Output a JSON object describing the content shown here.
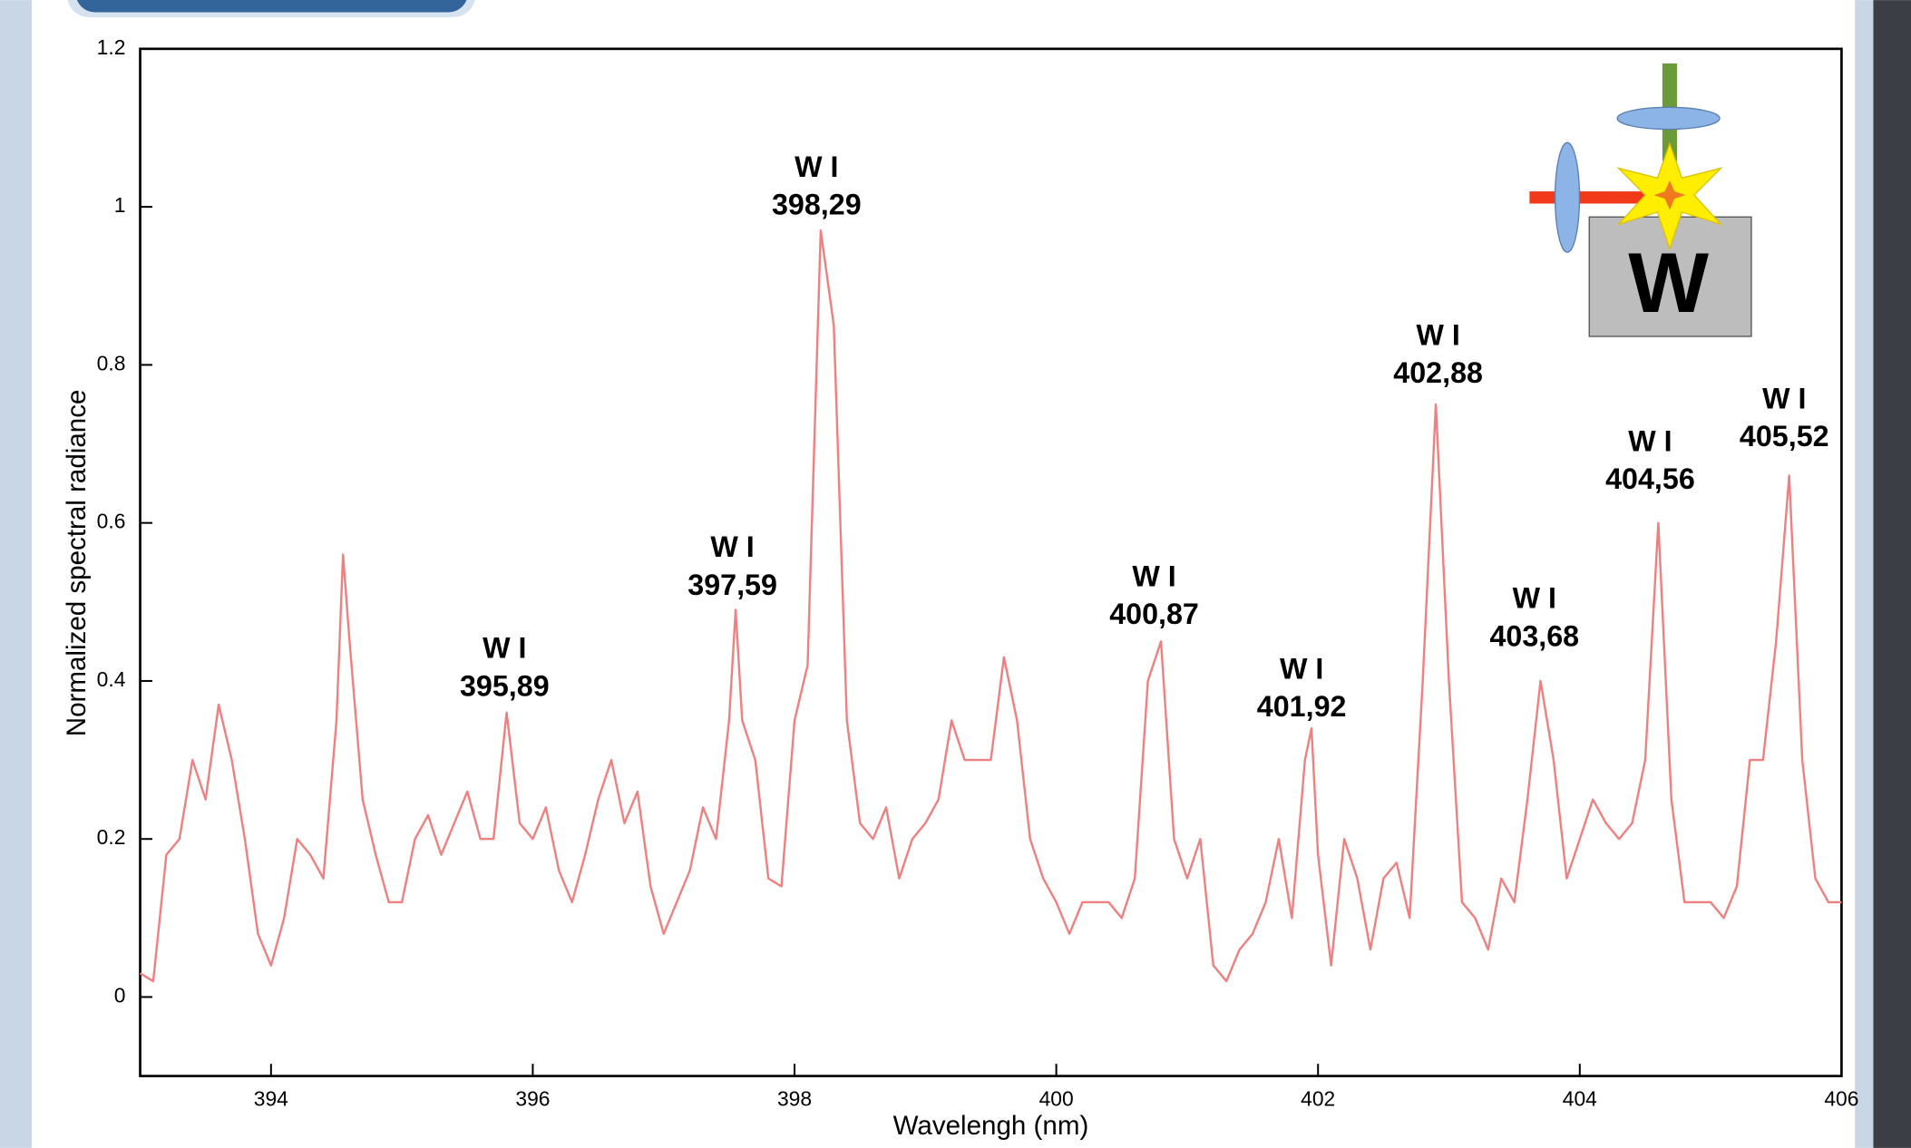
{
  "chart_data": {
    "type": "line",
    "color": "#f08080",
    "grid": false,
    "x_label": "Wavelengh (nm)",
    "y_label": "Normalized spectral radiance",
    "xlim": [
      393,
      406
    ],
    "xticks": [
      394,
      396,
      398,
      400,
      402,
      404,
      406
    ],
    "ylim": [
      -0.1,
      1.2
    ],
    "yticks": [
      0,
      0.2,
      0.4,
      0.6,
      0.8,
      1,
      1.2
    ],
    "x": [
      393.0,
      393.1,
      393.2,
      393.3,
      393.4,
      393.5,
      393.6,
      393.7,
      393.8,
      393.9,
      394.0,
      394.1,
      394.2,
      394.3,
      394.4,
      394.5,
      394.55,
      394.6,
      394.7,
      394.8,
      394.9,
      395.0,
      395.1,
      395.2,
      395.3,
      395.4,
      395.5,
      395.6,
      395.7,
      395.8,
      395.9,
      396.0,
      396.1,
      396.2,
      396.3,
      396.4,
      396.5,
      396.6,
      396.7,
      396.8,
      396.9,
      397.0,
      397.1,
      397.2,
      397.3,
      397.4,
      397.5,
      397.55,
      397.6,
      397.7,
      397.8,
      397.9,
      398.0,
      398.1,
      398.2,
      398.3,
      398.4,
      398.5,
      398.6,
      398.7,
      398.8,
      398.9,
      399.0,
      399.1,
      399.2,
      399.3,
      399.4,
      399.5,
      399.6,
      399.7,
      399.8,
      399.9,
      400.0,
      400.1,
      400.2,
      400.3,
      400.4,
      400.5,
      400.6,
      400.7,
      400.8,
      400.9,
      401.0,
      401.1,
      401.2,
      401.3,
      401.4,
      401.5,
      401.6,
      401.7,
      401.8,
      401.9,
      401.95,
      402.0,
      402.1,
      402.2,
      402.3,
      402.4,
      402.5,
      402.6,
      402.7,
      402.8,
      402.9,
      403.0,
      403.1,
      403.2,
      403.3,
      403.4,
      403.5,
      403.6,
      403.7,
      403.8,
      403.9,
      404.0,
      404.1,
      404.2,
      404.3,
      404.4,
      404.5,
      404.6,
      404.7,
      404.8,
      404.9,
      405.0,
      405.1,
      405.2,
      405.3,
      405.4,
      405.5,
      405.6,
      405.7,
      405.8,
      405.9,
      406.0
    ],
    "values": [
      0.03,
      0.02,
      0.18,
      0.2,
      0.3,
      0.25,
      0.37,
      0.3,
      0.2,
      0.08,
      0.04,
      0.1,
      0.2,
      0.18,
      0.15,
      0.35,
      0.56,
      0.45,
      0.25,
      0.18,
      0.12,
      0.12,
      0.2,
      0.23,
      0.18,
      0.22,
      0.26,
      0.2,
      0.2,
      0.36,
      0.22,
      0.2,
      0.24,
      0.16,
      0.12,
      0.18,
      0.25,
      0.3,
      0.22,
      0.26,
      0.14,
      0.08,
      0.12,
      0.16,
      0.24,
      0.2,
      0.35,
      0.49,
      0.35,
      0.3,
      0.15,
      0.14,
      0.35,
      0.42,
      0.97,
      0.85,
      0.35,
      0.22,
      0.2,
      0.24,
      0.15,
      0.2,
      0.22,
      0.25,
      0.35,
      0.3,
      0.3,
      0.3,
      0.43,
      0.35,
      0.2,
      0.15,
      0.12,
      0.08,
      0.12,
      0.12,
      0.12,
      0.1,
      0.15,
      0.4,
      0.45,
      0.2,
      0.15,
      0.2,
      0.04,
      0.02,
      0.06,
      0.08,
      0.12,
      0.2,
      0.1,
      0.3,
      0.34,
      0.18,
      0.04,
      0.2,
      0.15,
      0.06,
      0.15,
      0.17,
      0.1,
      0.4,
      0.75,
      0.4,
      0.12,
      0.1,
      0.06,
      0.15,
      0.12,
      0.25,
      0.4,
      0.3,
      0.15,
      0.2,
      0.25,
      0.22,
      0.2,
      0.22,
      0.3,
      0.6,
      0.25,
      0.12,
      0.12,
      0.12,
      0.1,
      0.14,
      0.3,
      0.3,
      0.45,
      0.66,
      0.3,
      0.15,
      0.12,
      0.12
    ],
    "annotations": [
      {
        "element": "W I",
        "wavelength": "398,29"
      },
      {
        "element": "W I",
        "wavelength": "397,59"
      },
      {
        "element": "W I",
        "wavelength": "395,89"
      },
      {
        "element": "W I",
        "wavelength": "400,87"
      },
      {
        "element": "W I",
        "wavelength": "401,92"
      },
      {
        "element": "W I",
        "wavelength": "402,88"
      },
      {
        "element": "W I",
        "wavelength": "403,68"
      },
      {
        "element": "W I",
        "wavelength": "404,56"
      },
      {
        "element": "W I",
        "wavelength": "405,52"
      }
    ]
  },
  "inset": {
    "label": "W"
  }
}
